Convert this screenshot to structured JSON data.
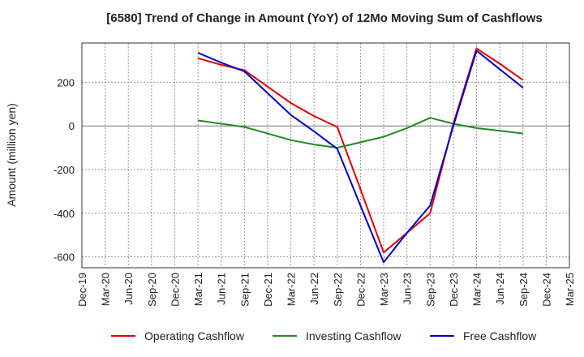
{
  "chart_data": {
    "type": "line",
    "title": "[6580]  Trend of Change in Amount (YoY) of 12Mo Moving Sum of Cashflows",
    "xlabel": "",
    "ylabel": "Amount (million yen)",
    "categories": [
      "Dec-19",
      "Mar-20",
      "Jun-20",
      "Sep-20",
      "Dec-20",
      "Mar-21",
      "Jun-21",
      "Sep-21",
      "Dec-21",
      "Mar-22",
      "Jun-22",
      "Sep-22",
      "Dec-22",
      "Mar-23",
      "Jun-23",
      "Sep-23",
      "Dec-23",
      "Mar-24",
      "Jun-24",
      "Sep-24",
      "Dec-24",
      "Mar-25"
    ],
    "yticks": [
      -600,
      -400,
      -200,
      0,
      200
    ],
    "ylim": [
      -650,
      380
    ],
    "grid": true,
    "legend_position": "bottom",
    "series": [
      {
        "name": "Operating Cashflow",
        "color": "#e60000",
        "values": [
          null,
          null,
          null,
          null,
          null,
          310,
          280,
          255,
          180,
          105,
          45,
          -5,
          -290,
          -580,
          -490,
          -400,
          10,
          355,
          285,
          210,
          null,
          null
        ]
      },
      {
        "name": "Investing Cashflow",
        "color": "#228b22",
        "values": [
          null,
          null,
          null,
          null,
          null,
          25,
          10,
          -5,
          -35,
          -65,
          -85,
          -100,
          -75,
          -50,
          -10,
          37,
          10,
          -10,
          -22,
          -35,
          null,
          null
        ]
      },
      {
        "name": "Free Cashflow",
        "color": "#0000cc",
        "values": [
          null,
          null,
          null,
          null,
          null,
          335,
          290,
          250,
          150,
          50,
          -25,
          -105,
          -365,
          -625,
          -490,
          -365,
          0,
          345,
          260,
          175,
          null,
          null
        ]
      }
    ]
  }
}
